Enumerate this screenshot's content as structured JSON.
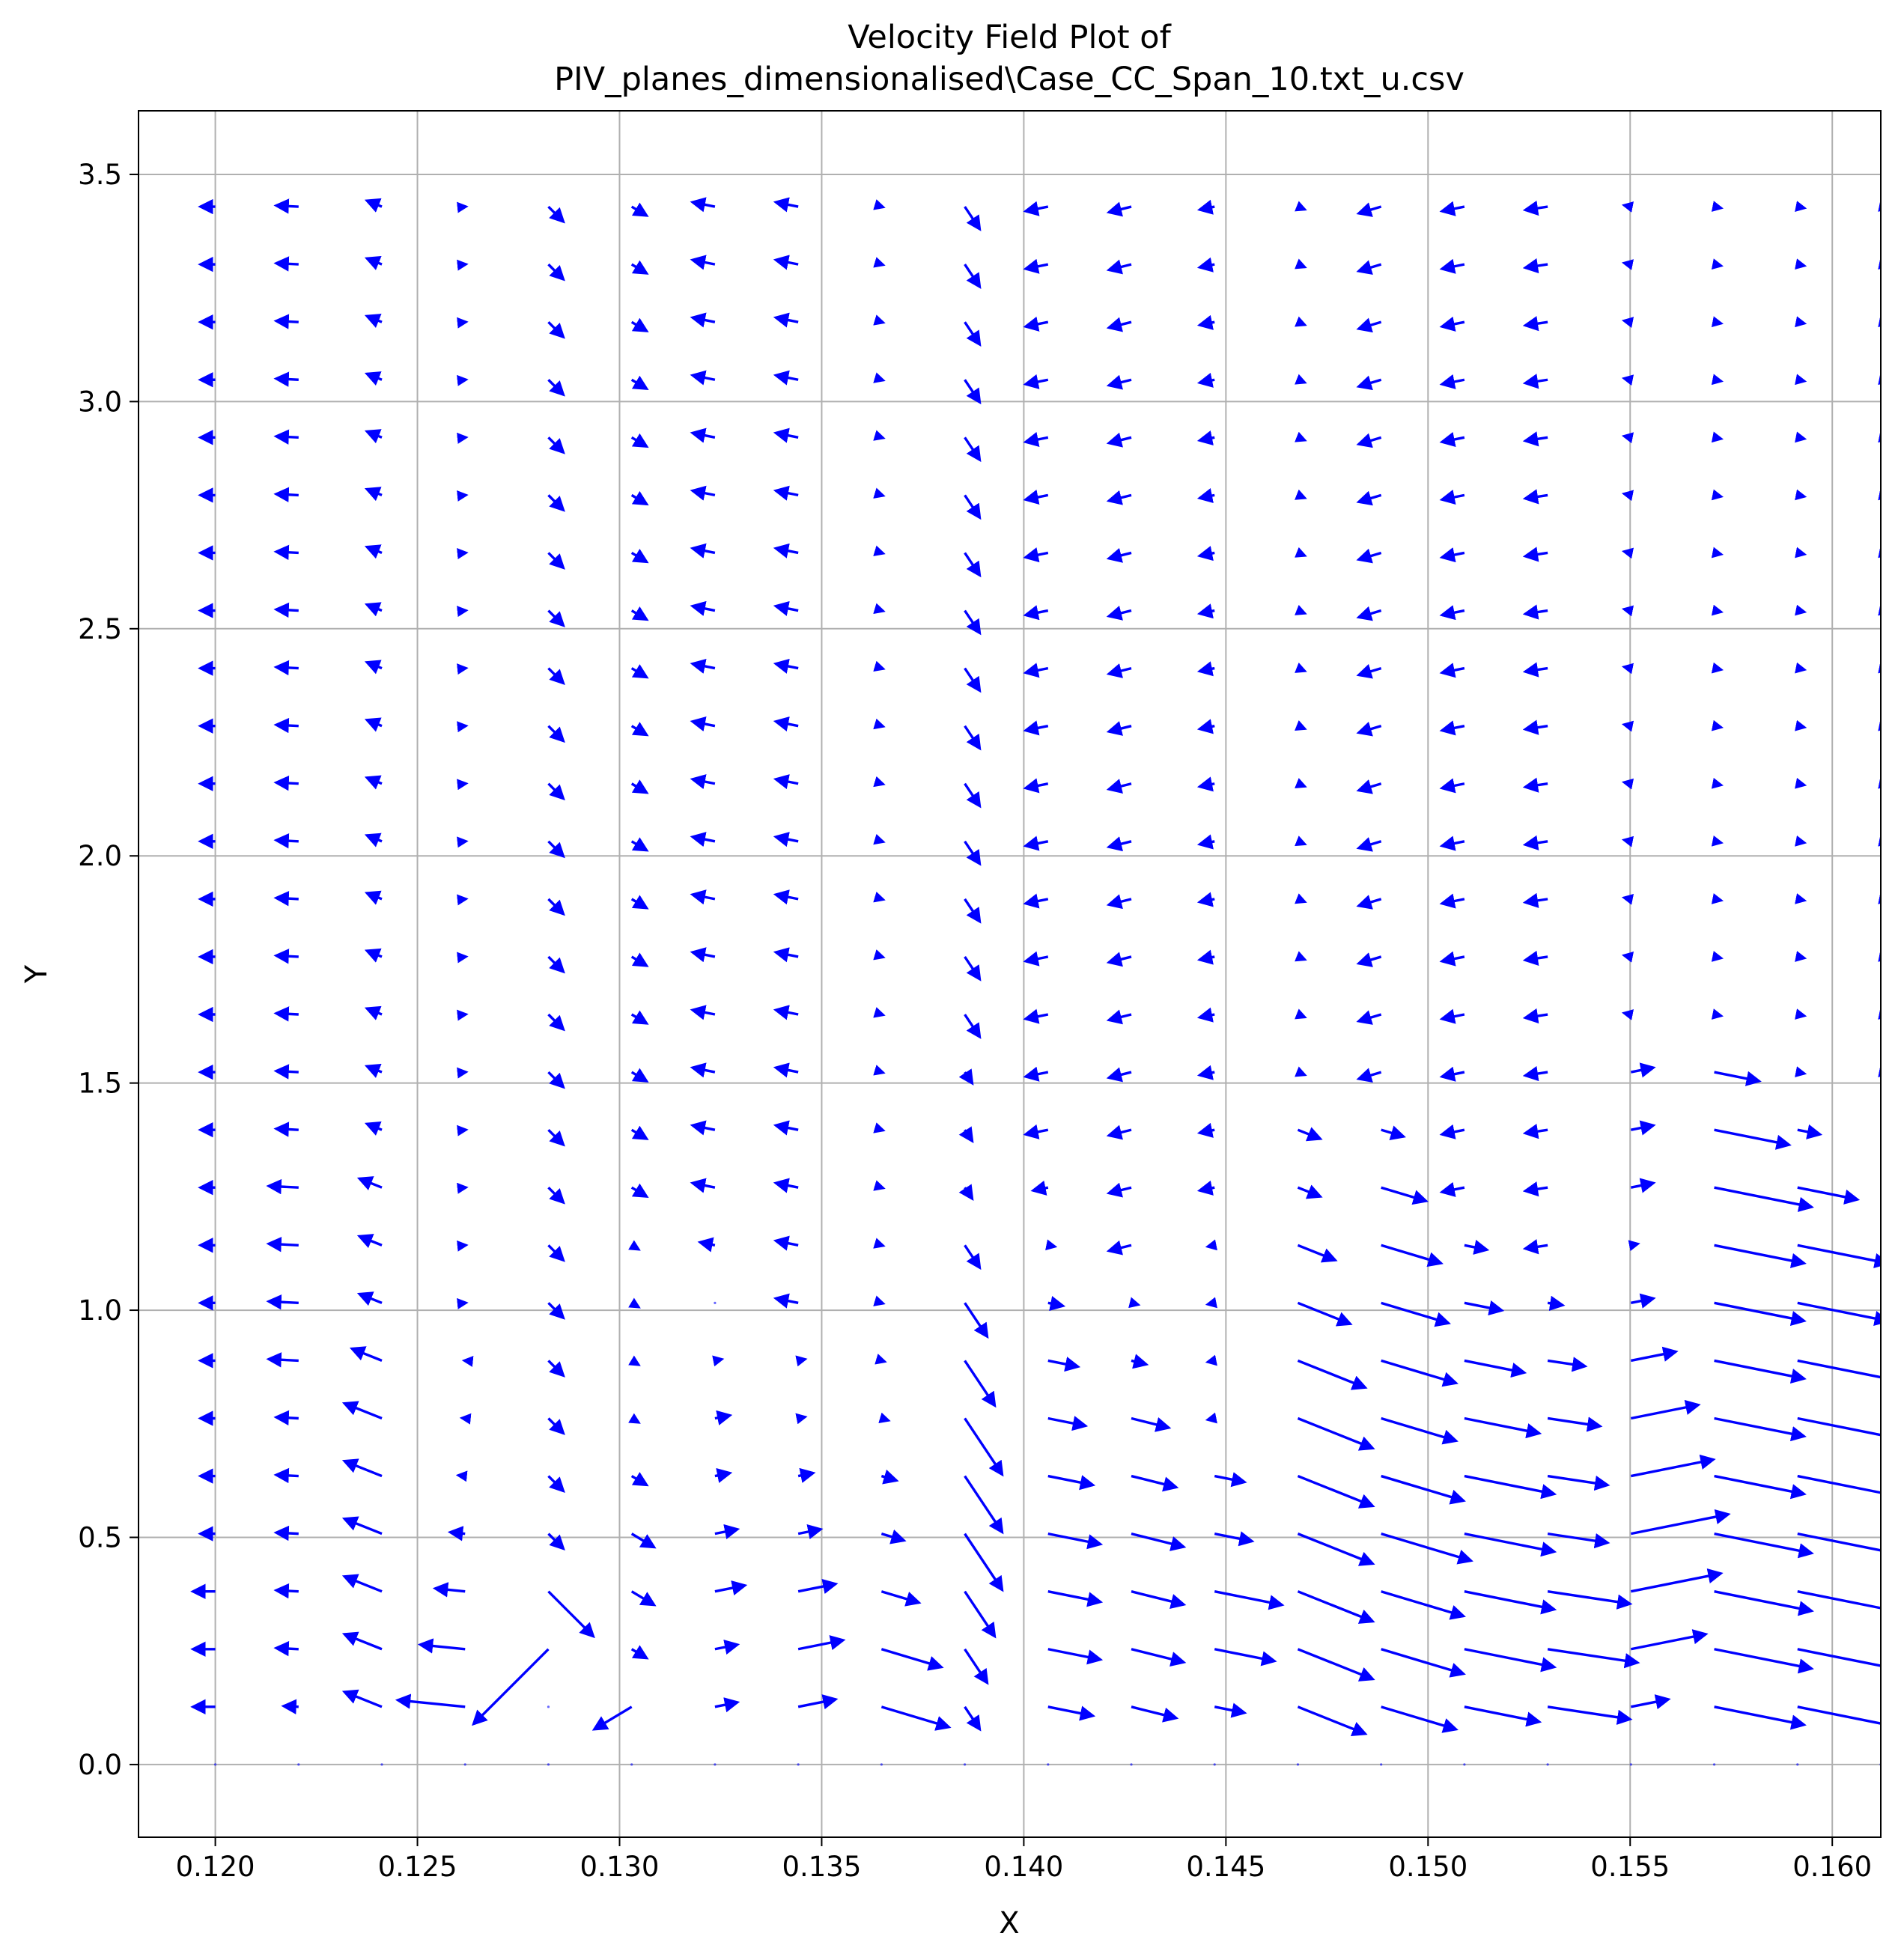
{
  "chart_data": {
    "type": "quiver",
    "title_lines": [
      "Velocity Field Plot of",
      "PIV_planes_dimensionalised\\Case_CC_Span_10.txt_u.csv"
    ],
    "xlabel": "X",
    "ylabel": "Y",
    "xlim": [
      0.1181,
      0.1612
    ],
    "ylim": [
      -0.16,
      3.64
    ],
    "grid": true,
    "arrow_color": "#0000ff",
    "grid_color": "#b0b0b0",
    "x_ticks": [
      {
        "value": 0.12,
        "label": "0.120"
      },
      {
        "value": 0.125,
        "label": "0.125"
      },
      {
        "value": 0.13,
        "label": "0.130"
      },
      {
        "value": 0.135,
        "label": "0.135"
      },
      {
        "value": 0.14,
        "label": "0.140"
      },
      {
        "value": 0.145,
        "label": "0.145"
      },
      {
        "value": 0.15,
        "label": "0.150"
      },
      {
        "value": 0.155,
        "label": "0.155"
      },
      {
        "value": 0.16,
        "label": "0.160"
      }
    ],
    "y_ticks": [
      {
        "value": 0.0,
        "label": "0.0"
      },
      {
        "value": 0.5,
        "label": "0.5"
      },
      {
        "value": 1.0,
        "label": "1.0"
      },
      {
        "value": 1.5,
        "label": "1.5"
      },
      {
        "value": 2.0,
        "label": "2.0"
      },
      {
        "value": 2.5,
        "label": "2.5"
      },
      {
        "value": 3.0,
        "label": "3.0"
      },
      {
        "value": 3.5,
        "label": "3.5"
      }
    ],
    "grid_x": [
      0.12,
      0.12206,
      0.12412,
      0.12618,
      0.12824,
      0.1303,
      0.13236,
      0.13442,
      0.13648,
      0.13854,
      0.1406,
      0.14266,
      0.14472,
      0.14678,
      0.14884,
      0.1509,
      0.15296,
      0.15502,
      0.15708,
      0.15914,
      0.1612
    ],
    "grid_y": [
      0.0,
      0.127,
      0.254,
      0.381,
      0.508,
      0.635,
      0.762,
      0.889,
      1.016,
      1.143,
      1.27,
      1.397,
      1.524,
      1.651,
      1.778,
      1.905,
      2.032,
      2.159,
      2.286,
      2.413,
      2.54,
      2.667,
      2.794,
      2.921,
      3.048,
      3.175,
      3.302,
      3.429
    ],
    "field_note": "Vector components u (normalised) and v (as a multiple of u) per grid point, estimated from the plot; near the bottom-right the flow accelerates to the right, in the upper region weak vectors point left and slightly downward.",
    "columns": [
      {
        "u": [
          0,
          -0.3,
          -0.3,
          -0.3,
          -0.2,
          -0.2,
          -0.2,
          -0.2,
          -0.2,
          -0.2,
          -0.2,
          -0.2,
          -0.2,
          -0.2,
          -0.2,
          -0.2,
          -0.2,
          -0.2,
          -0.2,
          -0.2,
          -0.2,
          -0.2,
          -0.2,
          -0.2,
          -0.2,
          -0.2,
          -0.2,
          -0.2
        ],
        "v": 0.0
      },
      {
        "u": [
          0,
          -0.2,
          -0.3,
          -0.3,
          -0.3,
          -0.3,
          -0.3,
          -0.4,
          -0.4,
          -0.4,
          -0.4,
          -0.3,
          -0.3,
          -0.3,
          -0.3,
          -0.3,
          -0.3,
          -0.3,
          -0.3,
          -0.3,
          -0.3,
          -0.3,
          -0.3,
          -0.3,
          -0.3,
          -0.3,
          -0.3,
          -0.3
        ],
        "v": 0.05
      },
      {
        "u": [
          0,
          -0.5,
          -0.5,
          -0.5,
          -0.5,
          -0.5,
          -0.5,
          -0.4,
          -0.3,
          -0.3,
          -0.3,
          -0.2,
          -0.2,
          -0.2,
          -0.2,
          -0.2,
          -0.2,
          -0.2,
          -0.2,
          -0.2,
          -0.2,
          -0.2,
          -0.2,
          -0.2,
          -0.2,
          -0.2,
          -0.2,
          -0.2
        ],
        "v": 0.4
      },
      {
        "u": [
          0,
          -0.9,
          -0.6,
          -0.4,
          -0.2,
          -0.1,
          -0.05,
          -0.02,
          0.02,
          0.02,
          0.02,
          0.02,
          0.02,
          0.02,
          0.02,
          0.02,
          0.02,
          0.02,
          0.02,
          0.02,
          0.02,
          0.02,
          0.02,
          0.02,
          0.02,
          0.02,
          0.02,
          0.02
        ],
        "v": 0.1
      },
      {
        "u": [
          0,
          0.0,
          -1.0,
          0.6,
          0.2,
          0.2,
          0.2,
          0.2,
          0.2,
          0.2,
          0.2,
          0.2,
          0.2,
          0.2,
          0.2,
          0.2,
          0.2,
          0.2,
          0.2,
          0.2,
          0.2,
          0.2,
          0.2,
          0.2,
          0.2,
          0.2,
          0.2,
          0.2
        ],
        "v": -1.0
      },
      {
        "u": [
          0,
          -0.5,
          0.2,
          0.3,
          0.3,
          0.2,
          0.1,
          0.1,
          0.1,
          0.1,
          0.2,
          0.2,
          0.2,
          0.2,
          0.2,
          0.2,
          0.2,
          0.2,
          0.2,
          0.2,
          0.2,
          0.2,
          0.2,
          0.2,
          0.2,
          0.2,
          0.2,
          0.2
        ],
        "v": -0.6
      },
      {
        "u": [
          0,
          0.3,
          0.3,
          0.4,
          0.3,
          0.2,
          0.2,
          0.1,
          0.0,
          -0.2,
          -0.3,
          -0.3,
          -0.3,
          -0.3,
          -0.3,
          -0.3,
          -0.3,
          -0.3,
          -0.3,
          -0.3,
          -0.3,
          -0.3,
          -0.3,
          -0.3,
          -0.3,
          -0.3,
          -0.3,
          -0.3
        ],
        "v": 0.2
      },
      {
        "u": [
          0,
          0.5,
          0.6,
          0.5,
          0.3,
          0.2,
          0.1,
          0.1,
          -0.3,
          -0.3,
          -0.3,
          -0.3,
          -0.3,
          -0.3,
          -0.3,
          -0.3,
          -0.3,
          -0.3,
          -0.3,
          -0.3,
          -0.3,
          -0.3,
          -0.3,
          -0.3,
          -0.3,
          -0.3,
          -0.3,
          -0.3
        ],
        "v": 0.2
      },
      {
        "u": [
          0,
          0.9,
          0.8,
          0.5,
          0.3,
          0.2,
          0.1,
          0.05,
          0.03,
          0.03,
          0.03,
          0.03,
          0.03,
          0.03,
          0.03,
          0.03,
          0.03,
          0.03,
          0.03,
          0.03,
          0.03,
          0.03,
          0.03,
          0.03,
          0.03,
          0.03,
          0.03,
          0.03
        ],
        "v": -0.3
      },
      {
        "u": [
          0,
          0.2,
          0.3,
          0.4,
          0.5,
          0.5,
          0.5,
          0.4,
          0.3,
          0.2,
          0.1,
          0.1,
          0.1,
          0.2,
          0.2,
          0.2,
          0.2,
          0.2,
          0.2,
          0.2,
          0.2,
          0.2,
          0.2,
          0.2,
          0.2,
          0.2,
          0.2,
          0.2
        ],
        "v": -1.5
      },
      {
        "u": [
          0,
          0.6,
          0.7,
          0.7,
          0.7,
          0.6,
          0.5,
          0.4,
          0.2,
          0.1,
          -0.2,
          -0.3,
          -0.3,
          -0.3,
          -0.3,
          -0.3,
          -0.3,
          -0.3,
          -0.3,
          -0.3,
          -0.3,
          -0.3,
          -0.3,
          -0.3,
          -0.3,
          -0.3,
          -0.3,
          -0.3
        ],
        "v": -0.2
      },
      {
        "u": [
          0,
          0.6,
          0.7,
          0.7,
          0.7,
          0.6,
          0.5,
          0.2,
          0.1,
          -0.3,
          -0.3,
          -0.3,
          -0.3,
          -0.3,
          -0.3,
          -0.3,
          -0.3,
          -0.3,
          -0.3,
          -0.3,
          -0.3,
          -0.3,
          -0.3,
          -0.3,
          -0.3,
          -0.3,
          -0.3,
          -0.3
        ],
        "v": -0.25
      },
      {
        "u": [
          0,
          0.4,
          0.8,
          0.9,
          0.5,
          0.4,
          -0.1,
          -0.1,
          -0.1,
          -0.1,
          -0.2,
          -0.2,
          -0.2,
          -0.2,
          -0.2,
          -0.2,
          -0.2,
          -0.2,
          -0.2,
          -0.2,
          -0.2,
          -0.2,
          -0.2,
          -0.2,
          -0.2,
          -0.2,
          -0.2,
          -0.2
        ],
        "v": -0.2
      },
      {
        "u": [
          0,
          0.9,
          1.0,
          1.0,
          1.0,
          1.0,
          1.0,
          0.9,
          0.7,
          0.5,
          0.3,
          0.3,
          0.1,
          0.1,
          0.1,
          0.1,
          0.1,
          0.1,
          0.1,
          0.1,
          0.1,
          0.1,
          0.1,
          0.1,
          0.1,
          0.1,
          0.1,
          0.1
        ],
        "v": -0.4
      },
      {
        "u": [
          0,
          1.0,
          1.1,
          1.1,
          1.2,
          1.1,
          1.0,
          1.0,
          0.9,
          0.8,
          0.6,
          0.3,
          -0.3,
          -0.3,
          -0.3,
          -0.3,
          -0.3,
          -0.3,
          -0.3,
          -0.3,
          -0.3,
          -0.3,
          -0.3,
          -0.3,
          -0.3,
          -0.3,
          -0.3,
          -0.3
        ],
        "v": -0.3
      },
      {
        "u": [
          0,
          1.0,
          1.2,
          1.2,
          1.2,
          1.2,
          1.0,
          0.8,
          0.5,
          0.3,
          -0.3,
          -0.3,
          -0.3,
          -0.3,
          -0.3,
          -0.3,
          -0.3,
          -0.3,
          -0.3,
          -0.3,
          -0.3,
          -0.3,
          -0.3,
          -0.3,
          -0.3,
          -0.3,
          -0.3,
          -0.3
        ],
        "v": -0.2
      },
      {
        "u": [
          0,
          1.1,
          1.2,
          1.1,
          0.8,
          0.8,
          0.7,
          0.5,
          0.2,
          -0.3,
          -0.3,
          -0.3,
          -0.3,
          -0.3,
          -0.3,
          -0.3,
          -0.3,
          -0.3,
          -0.3,
          -0.3,
          -0.3,
          -0.3,
          -0.3,
          -0.3,
          -0.3,
          -0.3,
          -0.3,
          -0.3
        ],
        "v": -0.15
      },
      {
        "u": [
          0,
          0.5,
          1.0,
          1.2,
          1.3,
          1.1,
          0.9,
          0.6,
          0.3,
          0.1,
          0.3,
          0.3,
          0.3,
          -0.1,
          -0.1,
          -0.1,
          -0.1,
          -0.1,
          -0.1,
          -0.1,
          -0.1,
          -0.1,
          -0.1,
          -0.1,
          -0.1,
          -0.1,
          -0.1,
          -0.1
        ],
        "v": 0.2
      },
      {
        "u": [
          0,
          1.2,
          1.3,
          1.3,
          1.3,
          1.2,
          1.2,
          1.2,
          1.2,
          1.2,
          1.3,
          1.0,
          0.6,
          0.1,
          0.1,
          0.1,
          0.1,
          0.1,
          0.1,
          0.1,
          0.1,
          0.1,
          0.1,
          0.1,
          0.1,
          0.1,
          0.1,
          0.1
        ],
        "v": -0.2
      },
      {
        "u": [
          0,
          1.3,
          1.3,
          1.3,
          1.3,
          1.3,
          1.3,
          1.3,
          1.2,
          1.2,
          0.8,
          0.3,
          0.1,
          0.1,
          0.1,
          0.1,
          0.1,
          0.1,
          0.1,
          0.1,
          0.1,
          0.1,
          0.1,
          0.1,
          0.1,
          0.1,
          0.1,
          0.1
        ],
        "v": -0.2
      },
      {
        "u": [
          0,
          1.3,
          1.3,
          1.3,
          1.3,
          1.3,
          1.3,
          1.3,
          1.3,
          1.3,
          1.3,
          0.3,
          0.1,
          0.1,
          0.1,
          0.1,
          0.1,
          0.1,
          0.1,
          0.1,
          0.1,
          0.1,
          0.1,
          0.1,
          0.1,
          0.1,
          0.1,
          0.1
        ],
        "v": -0.2
      }
    ]
  }
}
